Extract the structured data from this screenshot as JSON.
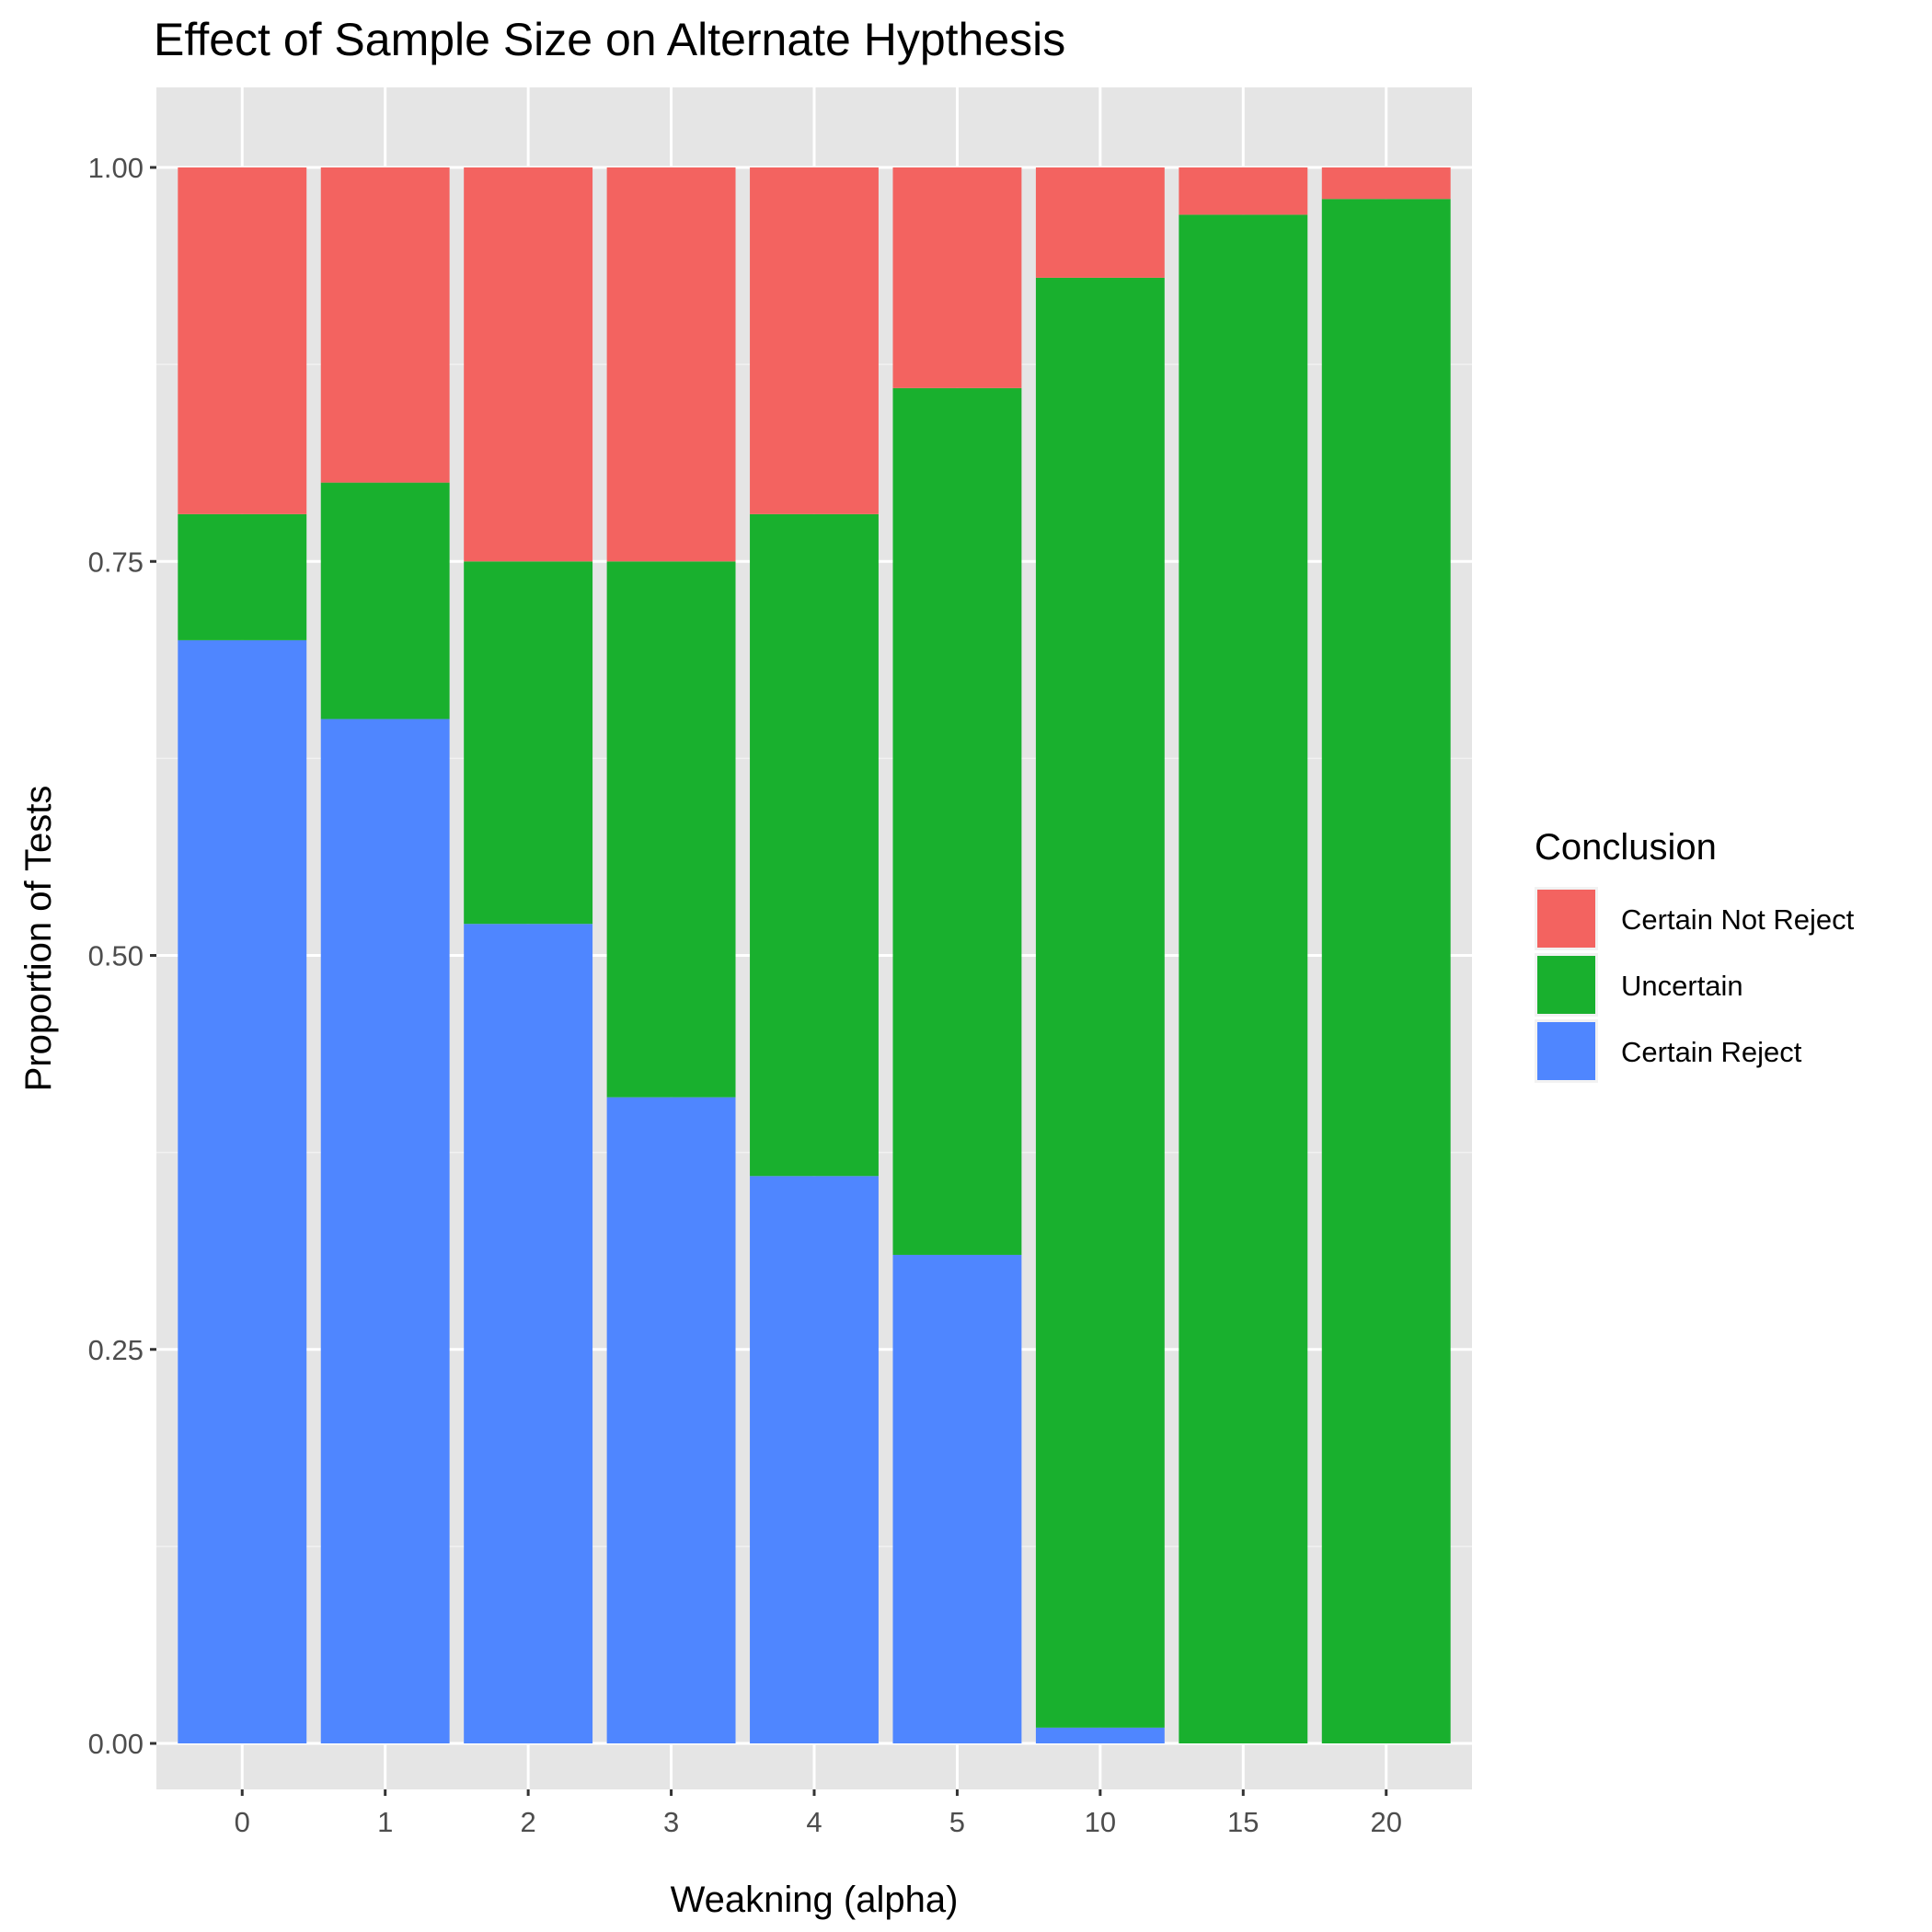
{
  "chart_data": {
    "type": "bar",
    "stacked": true,
    "title": "Effect of Sample Size on Alternate Hypthesis",
    "xlabel": "Weakning (alpha)",
    "ylabel": "Proportion of Tests",
    "categories": [
      "0",
      "1",
      "2",
      "3",
      "4",
      "5",
      "10",
      "15",
      "20"
    ],
    "ylim": [
      0,
      1
    ],
    "yticks": [
      "0.00",
      "0.25",
      "0.50",
      "0.75",
      "1.00"
    ],
    "legend_title": "Conclusion",
    "legend_position": "right",
    "series": [
      {
        "name": "Certain Not Reject",
        "color": "#F36360",
        "values": [
          0.22,
          0.2,
          0.25,
          0.25,
          0.22,
          0.14,
          0.07,
          0.03,
          0.02
        ]
      },
      {
        "name": "Uncertain",
        "color": "#19B02E",
        "values": [
          0.08,
          0.15,
          0.23,
          0.34,
          0.42,
          0.55,
          0.92,
          0.97,
          0.98
        ]
      },
      {
        "name": "Certain Reject",
        "color": "#4F86FF",
        "values": [
          0.7,
          0.65,
          0.52,
          0.41,
          0.36,
          0.31,
          0.01,
          0.0,
          0.0
        ]
      }
    ]
  }
}
